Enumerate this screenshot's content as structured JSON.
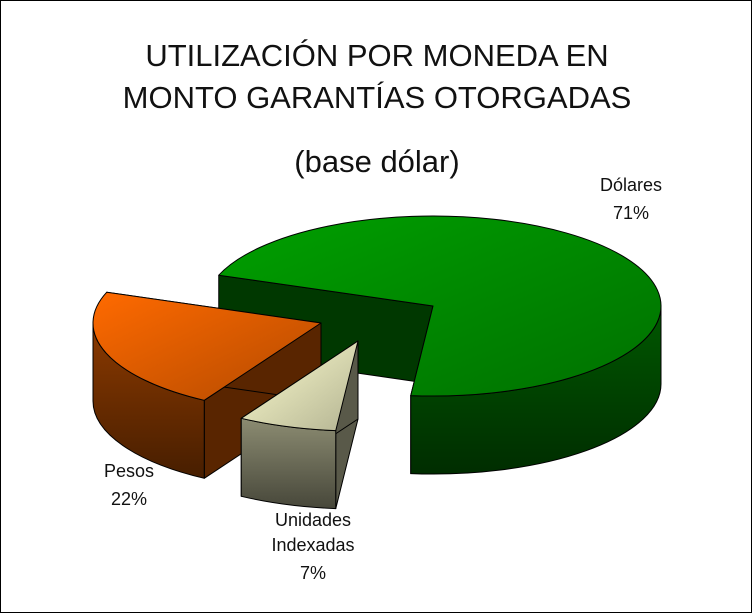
{
  "chart_data": {
    "type": "pie3d",
    "title": "UTILIZACIÓN POR MONEDA EN MONTO GARANTÍAS OTORGADAS",
    "subtitle": "(base dólar)",
    "categories": [
      "Dólares",
      "Unidades Indexadas",
      "Pesos"
    ],
    "values": [
      71,
      7,
      22
    ],
    "value_labels": [
      "71%",
      "7%",
      "22%"
    ],
    "colors": [
      "#00a000",
      "#ffffd0",
      "#ff6a00"
    ]
  }
}
